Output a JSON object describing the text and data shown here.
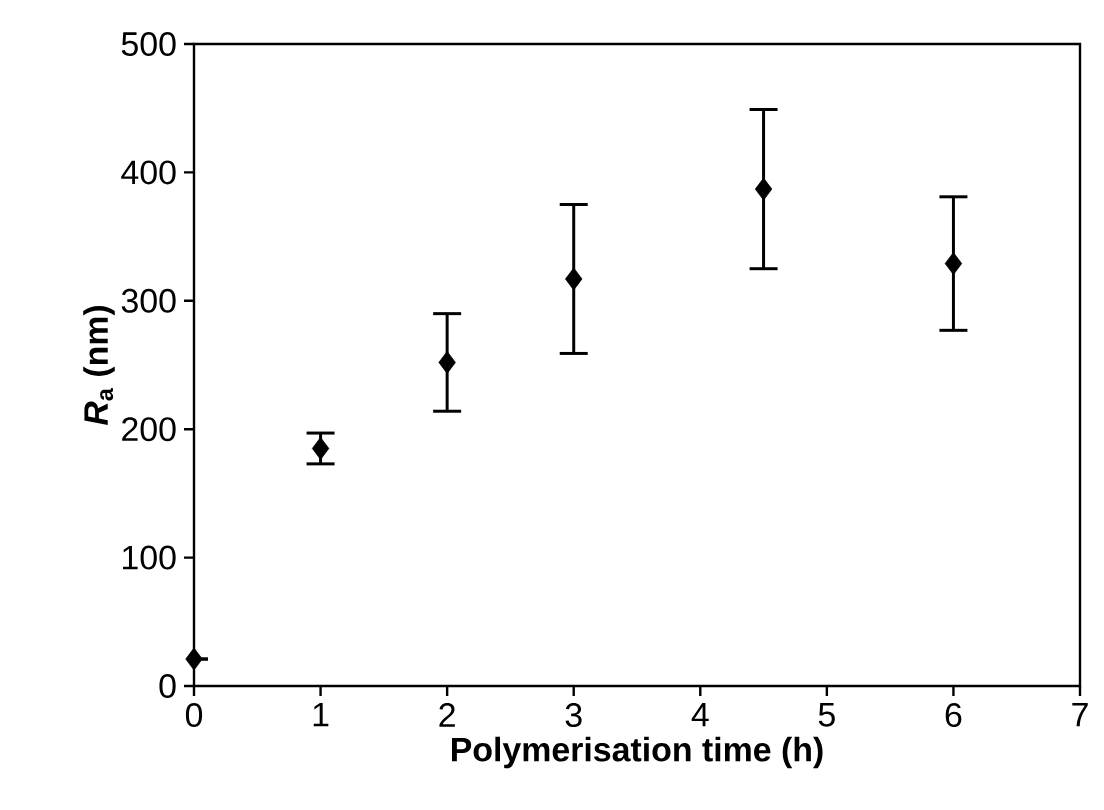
{
  "chart_data": {
    "type": "scatter",
    "xlabel": "Polymerisation time (h)",
    "ylabel": "*R*$_{a}$ (nm)",
    "x": [
      0,
      1,
      2,
      3,
      4.5,
      6
    ],
    "values": [
      21,
      185,
      252,
      317,
      387,
      329
    ],
    "errors": [
      null,
      12,
      38,
      58,
      62,
      52
    ],
    "color": "#000000",
    "marker": "diamond",
    "xlim": [
      0,
      7
    ],
    "xticks": [
      0,
      1,
      2,
      3,
      4,
      5,
      6,
      7
    ],
    "ylim": [
      0,
      500
    ],
    "yticks": [
      0,
      100,
      200,
      300,
      400,
      500
    ]
  }
}
